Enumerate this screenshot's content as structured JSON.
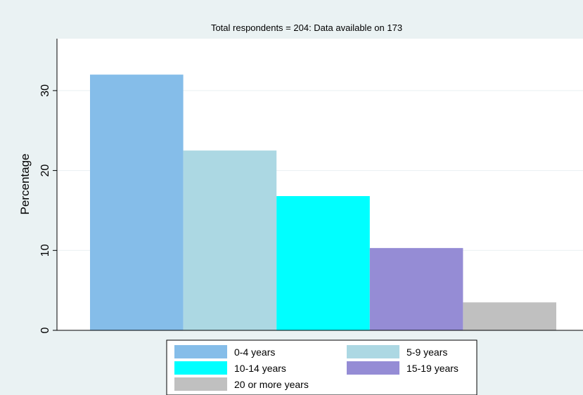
{
  "chart_data": {
    "type": "bar",
    "title": "Total respondents = 204: Data available on 173",
    "xlabel": "",
    "ylabel": "Percentage",
    "ylim": [
      0,
      36.5
    ],
    "yticks": [
      0,
      10,
      20,
      30
    ],
    "grid": true,
    "legend_position": "bottom",
    "series": [
      {
        "name": "0-4 years",
        "value": 32,
        "color": "#85bde9"
      },
      {
        "name": "5-9 years",
        "value": 22.5,
        "color": "#acd8e3"
      },
      {
        "name": "10-14 years",
        "value": 16.8,
        "color": "#00ffff"
      },
      {
        "name": "15-19 years",
        "value": 10.3,
        "color": "#958cd5"
      },
      {
        "name": "20 or more years",
        "value": 3.5,
        "color": "#c0c0c0"
      }
    ]
  },
  "colors": {
    "outer_background": "#eaf2f3",
    "plot_background": "#ffffff",
    "gridline": "#e9f0f2"
  }
}
